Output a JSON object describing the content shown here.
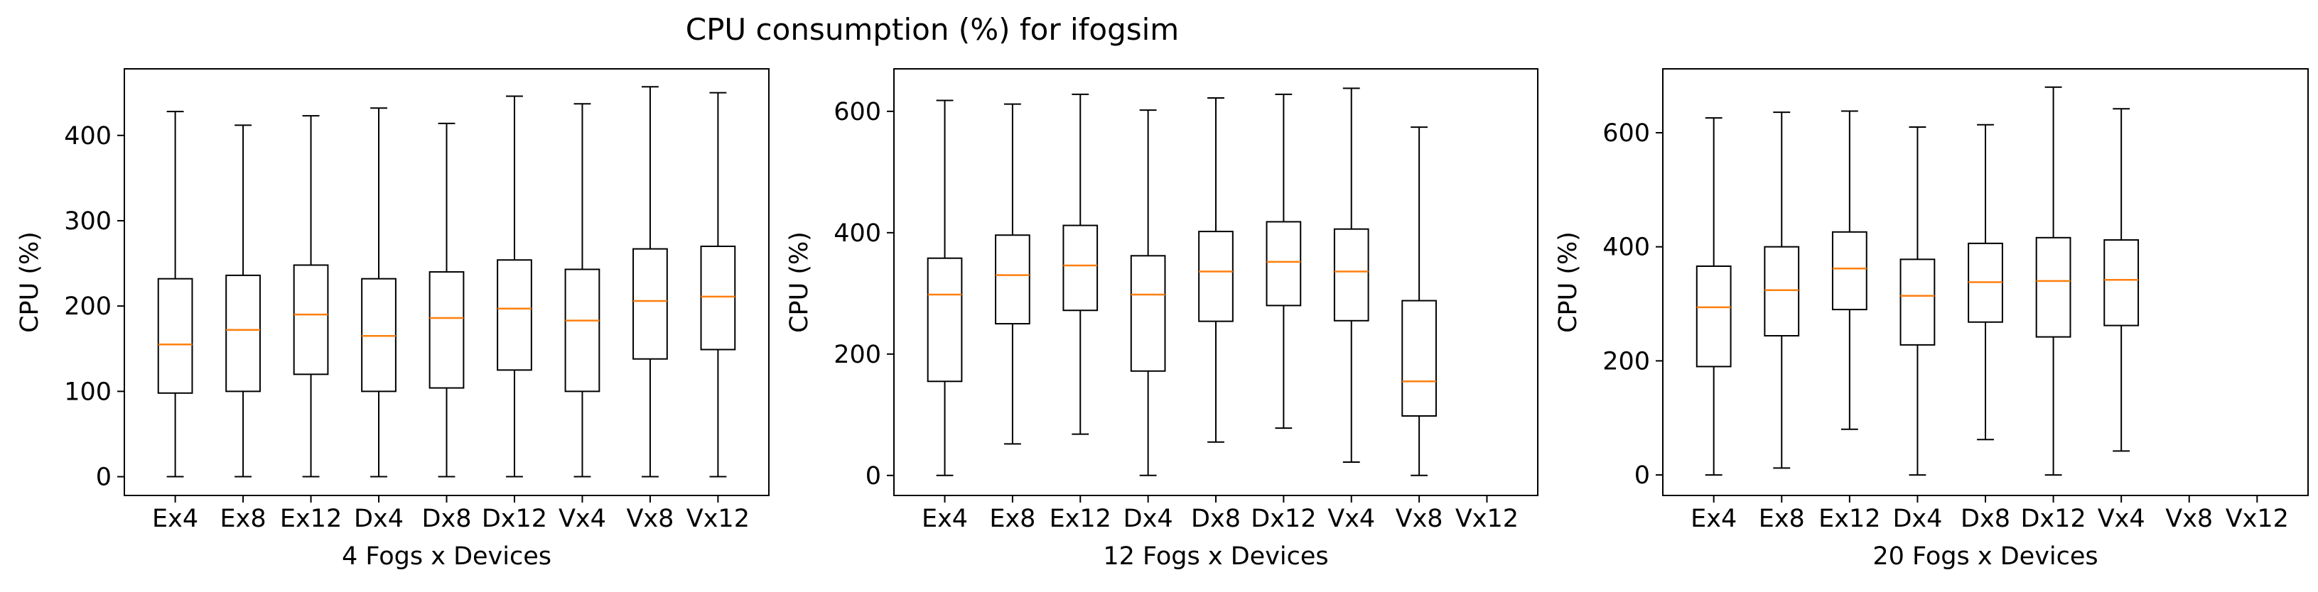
{
  "figure": {
    "title": "CPU consumption (%) for ifogsim"
  },
  "colors": {
    "box": "#000000",
    "median": "#ff7f0e",
    "background": "#ffffff"
  },
  "chart_data": [
    {
      "type": "box",
      "xlabel": "4 Fogs x Devices",
      "ylabel": "CPU (%)",
      "ylim": [
        -22,
        478
      ],
      "yticks": [
        0,
        100,
        200,
        300,
        400
      ],
      "categories": [
        "Ex4",
        "Ex8",
        "Ex12",
        "Dx4",
        "Dx8",
        "Dx12",
        "Vx4",
        "Vx8",
        "Vx12"
      ],
      "boxes": [
        {
          "whisker_low": 0,
          "q1": 98,
          "median": 155,
          "q3": 232,
          "whisker_high": 428
        },
        {
          "whisker_low": 0,
          "q1": 100,
          "median": 172,
          "q3": 236,
          "whisker_high": 412
        },
        {
          "whisker_low": 0,
          "q1": 120,
          "median": 190,
          "q3": 248,
          "whisker_high": 423
        },
        {
          "whisker_low": 0,
          "q1": 100,
          "median": 165,
          "q3": 232,
          "whisker_high": 432
        },
        {
          "whisker_low": 0,
          "q1": 104,
          "median": 186,
          "q3": 240,
          "whisker_high": 414
        },
        {
          "whisker_low": 0,
          "q1": 125,
          "median": 197,
          "q3": 254,
          "whisker_high": 446
        },
        {
          "whisker_low": 0,
          "q1": 100,
          "median": 183,
          "q3": 243,
          "whisker_high": 437
        },
        {
          "whisker_low": 0,
          "q1": 138,
          "median": 206,
          "q3": 267,
          "whisker_high": 457
        },
        {
          "whisker_low": 0,
          "q1": 149,
          "median": 211,
          "q3": 270,
          "whisker_high": 450
        }
      ]
    },
    {
      "type": "box",
      "xlabel": "12 Fogs x Devices",
      "ylabel": "CPU (%)",
      "ylim": [
        -33,
        670
      ],
      "yticks": [
        0,
        200,
        400,
        600
      ],
      "categories": [
        "Ex4",
        "Ex8",
        "Ex12",
        "Dx4",
        "Dx8",
        "Dx12",
        "Vx4",
        "Vx8",
        "Vx12"
      ],
      "boxes": [
        {
          "whisker_low": 0,
          "q1": 155,
          "median": 298,
          "q3": 358,
          "whisker_high": 618
        },
        {
          "whisker_low": 52,
          "q1": 250,
          "median": 330,
          "q3": 396,
          "whisker_high": 612
        },
        {
          "whisker_low": 68,
          "q1": 272,
          "median": 346,
          "q3": 412,
          "whisker_high": 628
        },
        {
          "whisker_low": 0,
          "q1": 172,
          "median": 298,
          "q3": 362,
          "whisker_high": 602
        },
        {
          "whisker_low": 55,
          "q1": 254,
          "median": 336,
          "q3": 402,
          "whisker_high": 622
        },
        {
          "whisker_low": 78,
          "q1": 280,
          "median": 352,
          "q3": 418,
          "whisker_high": 628
        },
        {
          "whisker_low": 22,
          "q1": 255,
          "median": 336,
          "q3": 406,
          "whisker_high": 638
        },
        {
          "whisker_low": 0,
          "q1": 98,
          "median": 155,
          "q3": 288,
          "whisker_high": 574
        },
        null
      ]
    },
    {
      "type": "box",
      "xlabel": "20 Fogs x Devices",
      "ylabel": "CPU (%)",
      "ylim": [
        -36,
        712
      ],
      "yticks": [
        0,
        200,
        400,
        600
      ],
      "categories": [
        "Ex4",
        "Ex8",
        "Ex12",
        "Dx4",
        "Dx8",
        "Dx12",
        "Vx4",
        "Vx8",
        "Vx12"
      ],
      "boxes": [
        {
          "whisker_low": 0,
          "q1": 190,
          "median": 294,
          "q3": 366,
          "whisker_high": 626
        },
        {
          "whisker_low": 12,
          "q1": 244,
          "median": 324,
          "q3": 400,
          "whisker_high": 636
        },
        {
          "whisker_low": 80,
          "q1": 290,
          "median": 362,
          "q3": 426,
          "whisker_high": 638
        },
        {
          "whisker_low": 0,
          "q1": 228,
          "median": 314,
          "q3": 378,
          "whisker_high": 610
        },
        {
          "whisker_low": 62,
          "q1": 268,
          "median": 338,
          "q3": 406,
          "whisker_high": 614
        },
        {
          "whisker_low": 0,
          "q1": 242,
          "median": 340,
          "q3": 416,
          "whisker_high": 680
        },
        {
          "whisker_low": 42,
          "q1": 262,
          "median": 342,
          "q3": 412,
          "whisker_high": 642
        },
        null,
        null
      ]
    }
  ]
}
